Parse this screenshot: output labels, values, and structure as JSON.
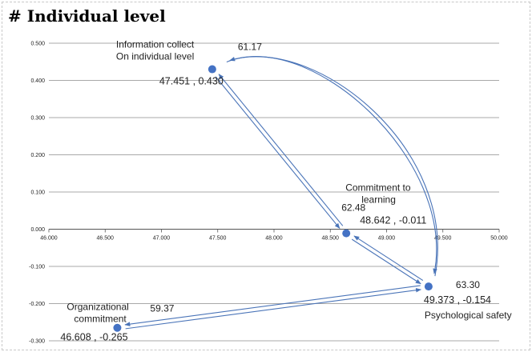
{
  "page": {
    "heading": "# Individual level"
  },
  "chart_data": {
    "type": "scatter",
    "title": "",
    "xlabel": "",
    "ylabel": "",
    "xlim": [
      46.0,
      50.0
    ],
    "ylim": [
      -0.3,
      0.5
    ],
    "x_ticks": [
      {
        "value": 46.0,
        "label": "46.000"
      },
      {
        "value": 46.5,
        "label": "46.500"
      },
      {
        "value": 47.0,
        "label": "47.000"
      },
      {
        "value": 47.5,
        "label": "47.500"
      },
      {
        "value": 48.0,
        "label": "48.000"
      },
      {
        "value": 48.5,
        "label": "48.500"
      },
      {
        "value": 49.0,
        "label": "49.000"
      },
      {
        "value": 49.5,
        "label": "49.500"
      },
      {
        "value": 50.0,
        "label": "50.000"
      }
    ],
    "y_ticks": [
      {
        "value": 0.5,
        "label": "0.500"
      },
      {
        "value": 0.4,
        "label": "0.400"
      },
      {
        "value": 0.3,
        "label": "0.300"
      },
      {
        "value": 0.2,
        "label": "0.200"
      },
      {
        "value": 0.1,
        "label": "0.100"
      },
      {
        "value": 0.0,
        "label": "0.000"
      },
      {
        "value": -0.1,
        "label": "-0.100"
      },
      {
        "value": -0.2,
        "label": "-0.200"
      },
      {
        "value": -0.3,
        "label": "-0.300"
      }
    ],
    "grid": true,
    "point_color": "#4472c4",
    "arrow_color": "#4a74b8",
    "points": [
      {
        "id": "info",
        "name": "Information collect\nOn individual level",
        "x": 47.451,
        "y": 0.43,
        "value_label": "47.451 , 0.430",
        "score": "61.17"
      },
      {
        "id": "commit",
        "name": "Commitment to\nlearning",
        "x": 48.642,
        "y": -0.011,
        "value_label": "48.642 , -0.011",
        "score": "62.48"
      },
      {
        "id": "psych",
        "name": "Psychological safety",
        "x": 49.373,
        "y": -0.154,
        "value_label": "49.373 , -0.154",
        "score": "63.30"
      },
      {
        "id": "org",
        "name": "Organizational\ncommitment",
        "x": 46.608,
        "y": -0.265,
        "value_label": "46.608 , -0.265",
        "score": "59.37"
      }
    ],
    "arrows": [
      {
        "from": "info",
        "to": "commit"
      },
      {
        "from": "commit",
        "to": "info"
      },
      {
        "from": "commit",
        "to": "psych"
      },
      {
        "from": "psych",
        "to": "commit"
      },
      {
        "from": "psych",
        "to": "org"
      },
      {
        "from": "org",
        "to": "psych"
      },
      {
        "from": "info",
        "to": "psych",
        "curved": true
      },
      {
        "from": "psych",
        "to": "info",
        "curved": true
      }
    ]
  }
}
